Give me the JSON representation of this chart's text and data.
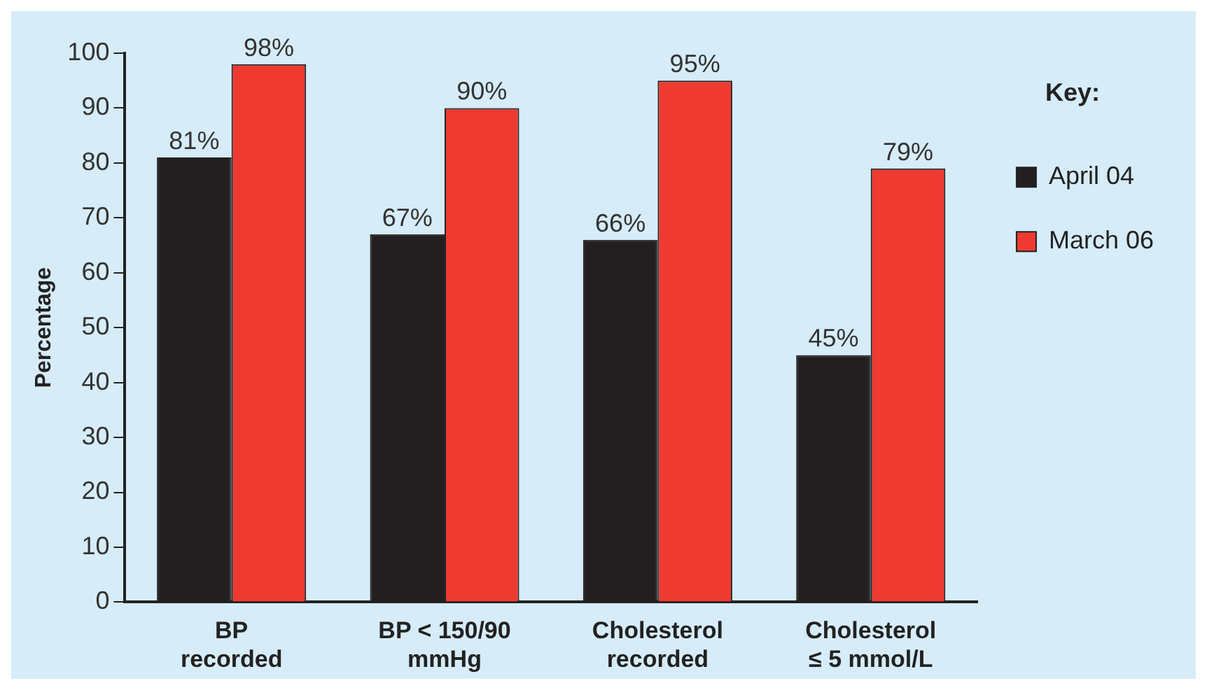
{
  "chart_data": {
    "type": "bar",
    "ylabel": "Percentage",
    "legend_title": "Key:",
    "categories": [
      "BP recorded",
      "BP < 150/90 mmHg",
      "Cholesterol recorded",
      "Cholesterol ≤ 5 mmol/L"
    ],
    "series": [
      {
        "name": "April 04",
        "color": "#231f20",
        "values": [
          81,
          67,
          66,
          45
        ],
        "value_labels": [
          "81%",
          "67%",
          "66%",
          "45%"
        ]
      },
      {
        "name": "March 06",
        "color": "#ee3a31",
        "values": [
          98,
          90,
          95,
          79
        ],
        "value_labels": [
          "98%",
          "90%",
          "95%",
          "79%"
        ]
      }
    ],
    "ylim": [
      0,
      100
    ],
    "yticks": [
      0,
      10,
      20,
      30,
      40,
      50,
      60,
      70,
      80,
      90,
      100
    ],
    "grid": false,
    "legend": "right"
  }
}
